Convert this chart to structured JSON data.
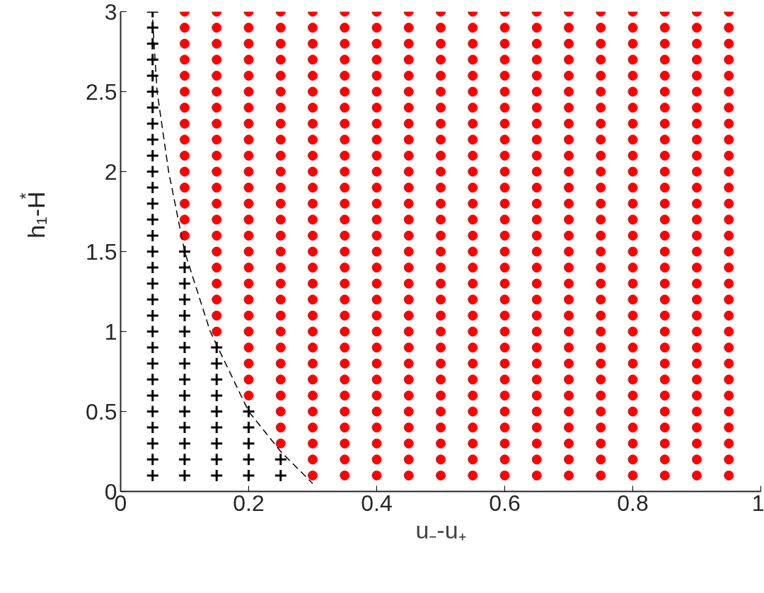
{
  "chart_data": {
    "type": "scatter",
    "xlabel": "u₋-u₊",
    "ylabel": "h₁-H$^{*}$",
    "xlim": [
      0,
      1
    ],
    "xticks": [
      0,
      0.2,
      0.4,
      0.6,
      0.8,
      1
    ],
    "ylim": [
      0,
      3
    ],
    "yticks": [
      0,
      0.5,
      1,
      1.5,
      2,
      2.5,
      3
    ],
    "grid": false,
    "series": [
      {
        "marker": "cross",
        "color": "#000000",
        "x": [
          0.05,
          0.05,
          0.05,
          0.05,
          0.05,
          0.05,
          0.05,
          0.05,
          0.05,
          0.05,
          0.05,
          0.05,
          0.05,
          0.05,
          0.05,
          0.05,
          0.05,
          0.05,
          0.05,
          0.05,
          0.05,
          0.05,
          0.05,
          0.05,
          0.05,
          0.05,
          0.05,
          0.05,
          0.05,
          0.05
        ],
        "values": [
          0.1,
          0.2,
          0.3,
          0.4,
          0.5,
          0.6,
          0.7,
          0.8,
          0.9,
          1.0,
          1.1,
          1.2,
          1.3,
          1.4,
          1.5,
          1.6,
          1.7,
          1.8,
          1.9,
          2.0,
          2.1,
          2.2,
          2.3,
          2.4,
          2.5,
          2.6,
          2.7,
          2.8,
          2.9,
          3.0
        ]
      },
      {
        "type": "scatter",
        "marker": "cross",
        "color": "#000000",
        "x": [
          0.1,
          0.1,
          0.1,
          0.1,
          0.1,
          0.1,
          0.1,
          0.1,
          0.1,
          0.1,
          0.1,
          0.1,
          0.1,
          0.1,
          0.1
        ],
        "values": [
          0.1,
          0.2,
          0.3,
          0.4,
          0.5,
          0.6,
          0.7,
          0.8,
          0.9,
          1.0,
          1.1,
          1.2,
          1.3,
          1.4,
          1.5
        ]
      },
      {
        "type": "scatter",
        "marker": "cross",
        "color": "#000000",
        "x": [
          0.15,
          0.15,
          0.15,
          0.15,
          0.15,
          0.15,
          0.15,
          0.15,
          0.15
        ],
        "values": [
          0.1,
          0.2,
          0.3,
          0.4,
          0.5,
          0.6,
          0.7,
          0.8,
          0.9
        ]
      },
      {
        "type": "scatter",
        "marker": "cross",
        "color": "#000000",
        "x": [
          0.2,
          0.2,
          0.2,
          0.2,
          0.2
        ],
        "values": [
          0.1,
          0.2,
          0.3,
          0.4,
          0.5
        ]
      },
      {
        "type": "scatter",
        "marker": "cross",
        "color": "#000000",
        "x": [
          0.25,
          0.25
        ],
        "values": [
          0.1,
          0.2
        ]
      },
      {
        "type": "scatter",
        "marker": "circle",
        "color": "#ff0000",
        "x": [
          0.1,
          0.1,
          0.1,
          0.1,
          0.1,
          0.1,
          0.1,
          0.1,
          0.1,
          0.1,
          0.1,
          0.1,
          0.1,
          0.1,
          0.1
        ],
        "values": [
          1.6,
          1.7,
          1.8,
          1.9,
          2.0,
          2.1,
          2.2,
          2.3,
          2.4,
          2.5,
          2.6,
          2.7,
          2.8,
          2.9,
          3.0
        ]
      },
      {
        "type": "scatter",
        "marker": "circle",
        "color": "#ff0000",
        "x": [
          0.15,
          0.15,
          0.15,
          0.15,
          0.15,
          0.15,
          0.15,
          0.15,
          0.15,
          0.15,
          0.15,
          0.15,
          0.15,
          0.15,
          0.15,
          0.15,
          0.15,
          0.15,
          0.15,
          0.15,
          0.15
        ],
        "values": [
          1.0,
          1.1,
          1.2,
          1.3,
          1.4,
          1.5,
          1.6,
          1.7,
          1.8,
          1.9,
          2.0,
          2.1,
          2.2,
          2.3,
          2.4,
          2.5,
          2.6,
          2.7,
          2.8,
          2.9,
          3.0
        ]
      },
      {
        "type": "scatter",
        "marker": "circle",
        "color": "#ff0000",
        "x": [
          0.2,
          0.2,
          0.2,
          0.2,
          0.2,
          0.2,
          0.2,
          0.2,
          0.2,
          0.2,
          0.2,
          0.2,
          0.2,
          0.2,
          0.2,
          0.2,
          0.2,
          0.2,
          0.2,
          0.2,
          0.2,
          0.2,
          0.2,
          0.2,
          0.2
        ],
        "values": [
          0.6,
          0.7,
          0.8,
          0.9,
          1.0,
          1.1,
          1.2,
          1.3,
          1.4,
          1.5,
          1.6,
          1.7,
          1.8,
          1.9,
          2.0,
          2.1,
          2.2,
          2.3,
          2.4,
          2.5,
          2.6,
          2.7,
          2.8,
          2.9,
          3.0
        ]
      },
      {
        "type": "scatter",
        "marker": "circle",
        "color": "#ff0000",
        "x": [
          0.25,
          0.25,
          0.25,
          0.25,
          0.25,
          0.25,
          0.25,
          0.25,
          0.25,
          0.25,
          0.25,
          0.25,
          0.25,
          0.25,
          0.25,
          0.25,
          0.25,
          0.25,
          0.25,
          0.25,
          0.25,
          0.25,
          0.25,
          0.25,
          0.25,
          0.25,
          0.25,
          0.25
        ],
        "values": [
          0.3,
          0.4,
          0.5,
          0.6,
          0.7,
          0.8,
          0.9,
          1.0,
          1.1,
          1.2,
          1.3,
          1.4,
          1.5,
          1.6,
          1.7,
          1.8,
          1.9,
          2.0,
          2.1,
          2.2,
          2.3,
          2.4,
          2.5,
          2.6,
          2.7,
          2.8,
          2.9,
          3.0
        ]
      },
      {
        "type": "scatter",
        "marker": "circle",
        "color": "#ff0000",
        "x": [
          0.3,
          0.3,
          0.3,
          0.3,
          0.3,
          0.3,
          0.3,
          0.3,
          0.3,
          0.3,
          0.3,
          0.3,
          0.3,
          0.3,
          0.3,
          0.3,
          0.3,
          0.3,
          0.3,
          0.3,
          0.3,
          0.3,
          0.3,
          0.3,
          0.3,
          0.3,
          0.3,
          0.3,
          0.3,
          0.3
        ],
        "values": [
          0.1,
          0.2,
          0.3,
          0.4,
          0.5,
          0.6,
          0.7,
          0.8,
          0.9,
          1.0,
          1.1,
          1.2,
          1.3,
          1.4,
          1.5,
          1.6,
          1.7,
          1.8,
          1.9,
          2.0,
          2.1,
          2.2,
          2.3,
          2.4,
          2.5,
          2.6,
          2.7,
          2.8,
          2.9,
          3.0
        ]
      },
      {
        "type": "scatter",
        "marker": "circle",
        "color": "#ff0000",
        "x": [
          0.35,
          0.35,
          0.35,
          0.35,
          0.35,
          0.35,
          0.35,
          0.35,
          0.35,
          0.35,
          0.35,
          0.35,
          0.35,
          0.35,
          0.35,
          0.35,
          0.35,
          0.35,
          0.35,
          0.35,
          0.35,
          0.35,
          0.35,
          0.35,
          0.35,
          0.35,
          0.35,
          0.35,
          0.35,
          0.35
        ],
        "values": [
          0.1,
          0.2,
          0.3,
          0.4,
          0.5,
          0.6,
          0.7,
          0.8,
          0.9,
          1.0,
          1.1,
          1.2,
          1.3,
          1.4,
          1.5,
          1.6,
          1.7,
          1.8,
          1.9,
          2.0,
          2.1,
          2.2,
          2.3,
          2.4,
          2.5,
          2.6,
          2.7,
          2.8,
          2.9,
          3.0
        ]
      },
      {
        "type": "scatter",
        "marker": "circle",
        "color": "#ff0000",
        "x": [
          0.4,
          0.4,
          0.4,
          0.4,
          0.4,
          0.4,
          0.4,
          0.4,
          0.4,
          0.4,
          0.4,
          0.4,
          0.4,
          0.4,
          0.4,
          0.4,
          0.4,
          0.4,
          0.4,
          0.4,
          0.4,
          0.4,
          0.4,
          0.4,
          0.4,
          0.4,
          0.4,
          0.4,
          0.4,
          0.4
        ],
        "values": [
          0.1,
          0.2,
          0.3,
          0.4,
          0.5,
          0.6,
          0.7,
          0.8,
          0.9,
          1.0,
          1.1,
          1.2,
          1.3,
          1.4,
          1.5,
          1.6,
          1.7,
          1.8,
          1.9,
          2.0,
          2.1,
          2.2,
          2.3,
          2.4,
          2.5,
          2.6,
          2.7,
          2.8,
          2.9,
          3.0
        ]
      },
      {
        "type": "scatter",
        "marker": "circle",
        "color": "#ff0000",
        "x": [
          0.45,
          0.45,
          0.45,
          0.45,
          0.45,
          0.45,
          0.45,
          0.45,
          0.45,
          0.45,
          0.45,
          0.45,
          0.45,
          0.45,
          0.45,
          0.45,
          0.45,
          0.45,
          0.45,
          0.45,
          0.45,
          0.45,
          0.45,
          0.45,
          0.45,
          0.45,
          0.45,
          0.45,
          0.45,
          0.45
        ],
        "values": [
          0.1,
          0.2,
          0.3,
          0.4,
          0.5,
          0.6,
          0.7,
          0.8,
          0.9,
          1.0,
          1.1,
          1.2,
          1.3,
          1.4,
          1.5,
          1.6,
          1.7,
          1.8,
          1.9,
          2.0,
          2.1,
          2.2,
          2.3,
          2.4,
          2.5,
          2.6,
          2.7,
          2.8,
          2.9,
          3.0
        ]
      },
      {
        "type": "scatter",
        "marker": "circle",
        "color": "#ff0000",
        "x": [
          0.5,
          0.5,
          0.5,
          0.5,
          0.5,
          0.5,
          0.5,
          0.5,
          0.5,
          0.5,
          0.5,
          0.5,
          0.5,
          0.5,
          0.5,
          0.5,
          0.5,
          0.5,
          0.5,
          0.5,
          0.5,
          0.5,
          0.5,
          0.5,
          0.5,
          0.5,
          0.5,
          0.5,
          0.5,
          0.5
        ],
        "values": [
          0.1,
          0.2,
          0.3,
          0.4,
          0.5,
          0.6,
          0.7,
          0.8,
          0.9,
          1.0,
          1.1,
          1.2,
          1.3,
          1.4,
          1.5,
          1.6,
          1.7,
          1.8,
          1.9,
          2.0,
          2.1,
          2.2,
          2.3,
          2.4,
          2.5,
          2.6,
          2.7,
          2.8,
          2.9,
          3.0
        ]
      },
      {
        "type": "scatter",
        "marker": "circle",
        "color": "#ff0000",
        "x": [
          0.55,
          0.55,
          0.55,
          0.55,
          0.55,
          0.55,
          0.55,
          0.55,
          0.55,
          0.55,
          0.55,
          0.55,
          0.55,
          0.55,
          0.55,
          0.55,
          0.55,
          0.55,
          0.55,
          0.55,
          0.55,
          0.55,
          0.55,
          0.55,
          0.55,
          0.55,
          0.55,
          0.55,
          0.55,
          0.55
        ],
        "values": [
          0.1,
          0.2,
          0.3,
          0.4,
          0.5,
          0.6,
          0.7,
          0.8,
          0.9,
          1.0,
          1.1,
          1.2,
          1.3,
          1.4,
          1.5,
          1.6,
          1.7,
          1.8,
          1.9,
          2.0,
          2.1,
          2.2,
          2.3,
          2.4,
          2.5,
          2.6,
          2.7,
          2.8,
          2.9,
          3.0
        ]
      },
      {
        "type": "scatter",
        "marker": "circle",
        "color": "#ff0000",
        "x": [
          0.6,
          0.6,
          0.6,
          0.6,
          0.6,
          0.6,
          0.6,
          0.6,
          0.6,
          0.6,
          0.6,
          0.6,
          0.6,
          0.6,
          0.6,
          0.6,
          0.6,
          0.6,
          0.6,
          0.6,
          0.6,
          0.6,
          0.6,
          0.6,
          0.6,
          0.6,
          0.6,
          0.6,
          0.6,
          0.6
        ],
        "values": [
          0.1,
          0.2,
          0.3,
          0.4,
          0.5,
          0.6,
          0.7,
          0.8,
          0.9,
          1.0,
          1.1,
          1.2,
          1.3,
          1.4,
          1.5,
          1.6,
          1.7,
          1.8,
          1.9,
          2.0,
          2.1,
          2.2,
          2.3,
          2.4,
          2.5,
          2.6,
          2.7,
          2.8,
          2.9,
          3.0
        ]
      },
      {
        "type": "scatter",
        "marker": "circle",
        "color": "#ff0000",
        "x": [
          0.65,
          0.65,
          0.65,
          0.65,
          0.65,
          0.65,
          0.65,
          0.65,
          0.65,
          0.65,
          0.65,
          0.65,
          0.65,
          0.65,
          0.65,
          0.65,
          0.65,
          0.65,
          0.65,
          0.65,
          0.65,
          0.65,
          0.65,
          0.65,
          0.65,
          0.65,
          0.65,
          0.65,
          0.65,
          0.65
        ],
        "values": [
          0.1,
          0.2,
          0.3,
          0.4,
          0.5,
          0.6,
          0.7,
          0.8,
          0.9,
          1.0,
          1.1,
          1.2,
          1.3,
          1.4,
          1.5,
          1.6,
          1.7,
          1.8,
          1.9,
          2.0,
          2.1,
          2.2,
          2.3,
          2.4,
          2.5,
          2.6,
          2.7,
          2.8,
          2.9,
          3.0
        ]
      },
      {
        "type": "scatter",
        "marker": "circle",
        "color": "#ff0000",
        "x": [
          0.7,
          0.7,
          0.7,
          0.7,
          0.7,
          0.7,
          0.7,
          0.7,
          0.7,
          0.7,
          0.7,
          0.7,
          0.7,
          0.7,
          0.7,
          0.7,
          0.7,
          0.7,
          0.7,
          0.7,
          0.7,
          0.7,
          0.7,
          0.7,
          0.7,
          0.7,
          0.7,
          0.7,
          0.7,
          0.7
        ],
        "values": [
          0.1,
          0.2,
          0.3,
          0.4,
          0.5,
          0.6,
          0.7,
          0.8,
          0.9,
          1.0,
          1.1,
          1.2,
          1.3,
          1.4,
          1.5,
          1.6,
          1.7,
          1.8,
          1.9,
          2.0,
          2.1,
          2.2,
          2.3,
          2.4,
          2.5,
          2.6,
          2.7,
          2.8,
          2.9,
          3.0
        ]
      },
      {
        "type": "scatter",
        "marker": "circle",
        "color": "#ff0000",
        "x": [
          0.75,
          0.75,
          0.75,
          0.75,
          0.75,
          0.75,
          0.75,
          0.75,
          0.75,
          0.75,
          0.75,
          0.75,
          0.75,
          0.75,
          0.75,
          0.75,
          0.75,
          0.75,
          0.75,
          0.75,
          0.75,
          0.75,
          0.75,
          0.75,
          0.75,
          0.75,
          0.75,
          0.75,
          0.75,
          0.75
        ],
        "values": [
          0.1,
          0.2,
          0.3,
          0.4,
          0.5,
          0.6,
          0.7,
          0.8,
          0.9,
          1.0,
          1.1,
          1.2,
          1.3,
          1.4,
          1.5,
          1.6,
          1.7,
          1.8,
          1.9,
          2.0,
          2.1,
          2.2,
          2.3,
          2.4,
          2.5,
          2.6,
          2.7,
          2.8,
          2.9,
          3.0
        ]
      },
      {
        "type": "scatter",
        "marker": "circle",
        "color": "#ff0000",
        "x": [
          0.8,
          0.8,
          0.8,
          0.8,
          0.8,
          0.8,
          0.8,
          0.8,
          0.8,
          0.8,
          0.8,
          0.8,
          0.8,
          0.8,
          0.8,
          0.8,
          0.8,
          0.8,
          0.8,
          0.8,
          0.8,
          0.8,
          0.8,
          0.8,
          0.8,
          0.8,
          0.8,
          0.8,
          0.8,
          0.8
        ],
        "values": [
          0.1,
          0.2,
          0.3,
          0.4,
          0.5,
          0.6,
          0.7,
          0.8,
          0.9,
          1.0,
          1.1,
          1.2,
          1.3,
          1.4,
          1.5,
          1.6,
          1.7,
          1.8,
          1.9,
          2.0,
          2.1,
          2.2,
          2.3,
          2.4,
          2.5,
          2.6,
          2.7,
          2.8,
          2.9,
          3.0
        ]
      },
      {
        "type": "scatter",
        "marker": "circle",
        "color": "#ff0000",
        "x": [
          0.85,
          0.85,
          0.85,
          0.85,
          0.85,
          0.85,
          0.85,
          0.85,
          0.85,
          0.85,
          0.85,
          0.85,
          0.85,
          0.85,
          0.85,
          0.85,
          0.85,
          0.85,
          0.85,
          0.85,
          0.85,
          0.85,
          0.85,
          0.85,
          0.85,
          0.85,
          0.85,
          0.85,
          0.85,
          0.85
        ],
        "values": [
          0.1,
          0.2,
          0.3,
          0.4,
          0.5,
          0.6,
          0.7,
          0.8,
          0.9,
          1.0,
          1.1,
          1.2,
          1.3,
          1.4,
          1.5,
          1.6,
          1.7,
          1.8,
          1.9,
          2.0,
          2.1,
          2.2,
          2.3,
          2.4,
          2.5,
          2.6,
          2.7,
          2.8,
          2.9,
          3.0
        ]
      },
      {
        "type": "scatter",
        "marker": "circle",
        "color": "#ff0000",
        "x": [
          0.9,
          0.9,
          0.9,
          0.9,
          0.9,
          0.9,
          0.9,
          0.9,
          0.9,
          0.9,
          0.9,
          0.9,
          0.9,
          0.9,
          0.9,
          0.9,
          0.9,
          0.9,
          0.9,
          0.9,
          0.9,
          0.9,
          0.9,
          0.9,
          0.9,
          0.9,
          0.9,
          0.9,
          0.9,
          0.9
        ],
        "values": [
          0.1,
          0.2,
          0.3,
          0.4,
          0.5,
          0.6,
          0.7,
          0.8,
          0.9,
          1.0,
          1.1,
          1.2,
          1.3,
          1.4,
          1.5,
          1.6,
          1.7,
          1.8,
          1.9,
          2.0,
          2.1,
          2.2,
          2.3,
          2.4,
          2.5,
          2.6,
          2.7,
          2.8,
          2.9,
          3.0
        ]
      },
      {
        "type": "scatter",
        "marker": "circle",
        "color": "#ff0000",
        "x": [
          0.95,
          0.95,
          0.95,
          0.95,
          0.95,
          0.95,
          0.95,
          0.95,
          0.95,
          0.95,
          0.95,
          0.95,
          0.95,
          0.95,
          0.95,
          0.95,
          0.95,
          0.95,
          0.95,
          0.95,
          0.95,
          0.95,
          0.95,
          0.95,
          0.95,
          0.95,
          0.95,
          0.95,
          0.95,
          0.95
        ],
        "values": [
          0.1,
          0.2,
          0.3,
          0.4,
          0.5,
          0.6,
          0.7,
          0.8,
          0.9,
          1.0,
          1.1,
          1.2,
          1.3,
          1.4,
          1.5,
          1.6,
          1.7,
          1.8,
          1.9,
          2.0,
          2.1,
          2.2,
          2.3,
          2.4,
          2.5,
          2.6,
          2.7,
          2.8,
          2.9,
          3.0
        ]
      },
      {
        "type": "line",
        "line_style": "dashed",
        "marker": "none",
        "color": "#000000",
        "x": [
          0.05,
          0.057,
          0.075,
          0.1,
          0.14,
          0.2,
          0.25,
          0.3
        ],
        "values": [
          2.95,
          2.5,
          2.0,
          1.5,
          1.0,
          0.5,
          0.25,
          0.05
        ]
      }
    ]
  }
}
